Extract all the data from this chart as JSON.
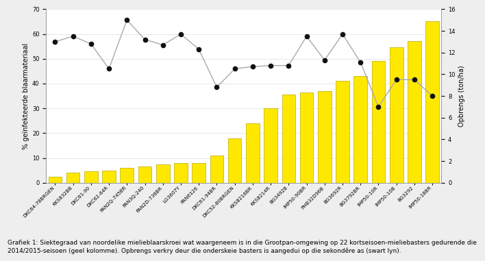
{
  "categories": [
    "DKC64-78BRGEN",
    "KKS832BB",
    "DKC61-90",
    "DKC62-64R",
    "PAN2Q-745BR",
    "PAN3Q-240",
    "PAN2D-738BR",
    "LG3607Y",
    "PAN6126",
    "DKC61-94BR",
    "DKC52-80BRGEN",
    "KKS8216BR",
    "KKS8214R",
    "BG3492B",
    "IMP50-90BR",
    "PHB32D96B",
    "BG3692R",
    "BG3792BR",
    "IMP50-10R",
    "IMP50-10B",
    "BG3292",
    "IMP50-18BR"
  ],
  "bar_values": [
    2.5,
    4.0,
    4.5,
    5.0,
    6.0,
    6.5,
    7.5,
    8.0,
    8.0,
    11.0,
    18.0,
    24.0,
    30.0,
    35.5,
    36.5,
    37.0,
    41.0,
    43.0,
    49.0,
    54.5,
    57.0,
    65.0
  ],
  "line_values": [
    13.0,
    13.5,
    12.8,
    10.5,
    15.0,
    13.2,
    12.7,
    13.7,
    12.3,
    8.8,
    10.5,
    10.7,
    10.8,
    10.8,
    13.5,
    11.3,
    13.7,
    11.1,
    7.0,
    9.5,
    9.5,
    8.0
  ],
  "bar_color": "#FFE800",
  "bar_edgecolor": "#BBAA00",
  "line_color": "#aaaaaa",
  "dot_color": "#111111",
  "ylim_left": [
    0,
    70
  ],
  "ylim_right": [
    0,
    16
  ],
  "ylabel_left": "% geïnfekteerde blaarmateriaal",
  "ylabel_right": "Opbrengs (ton/ha)",
  "caption_bold": "Grafiek 1: ",
  "caption_normal": "Siektegraad van noordelike mielieblaarskroei wat waargeneem is in die Grootpan-omgewing op 22 kortseisoen-mieliebasters gedurende die 2014/2015-seisoen (geel kolomme). Opbrengs verkry deur die onderskeie basters is aangedui op die sekondêre as (swart lyn).",
  "background_color": "#eeeeee",
  "plot_background": "#ffffff",
  "axis_fontsize": 7,
  "tick_fontsize": 6,
  "caption_fontsize": 6.5
}
